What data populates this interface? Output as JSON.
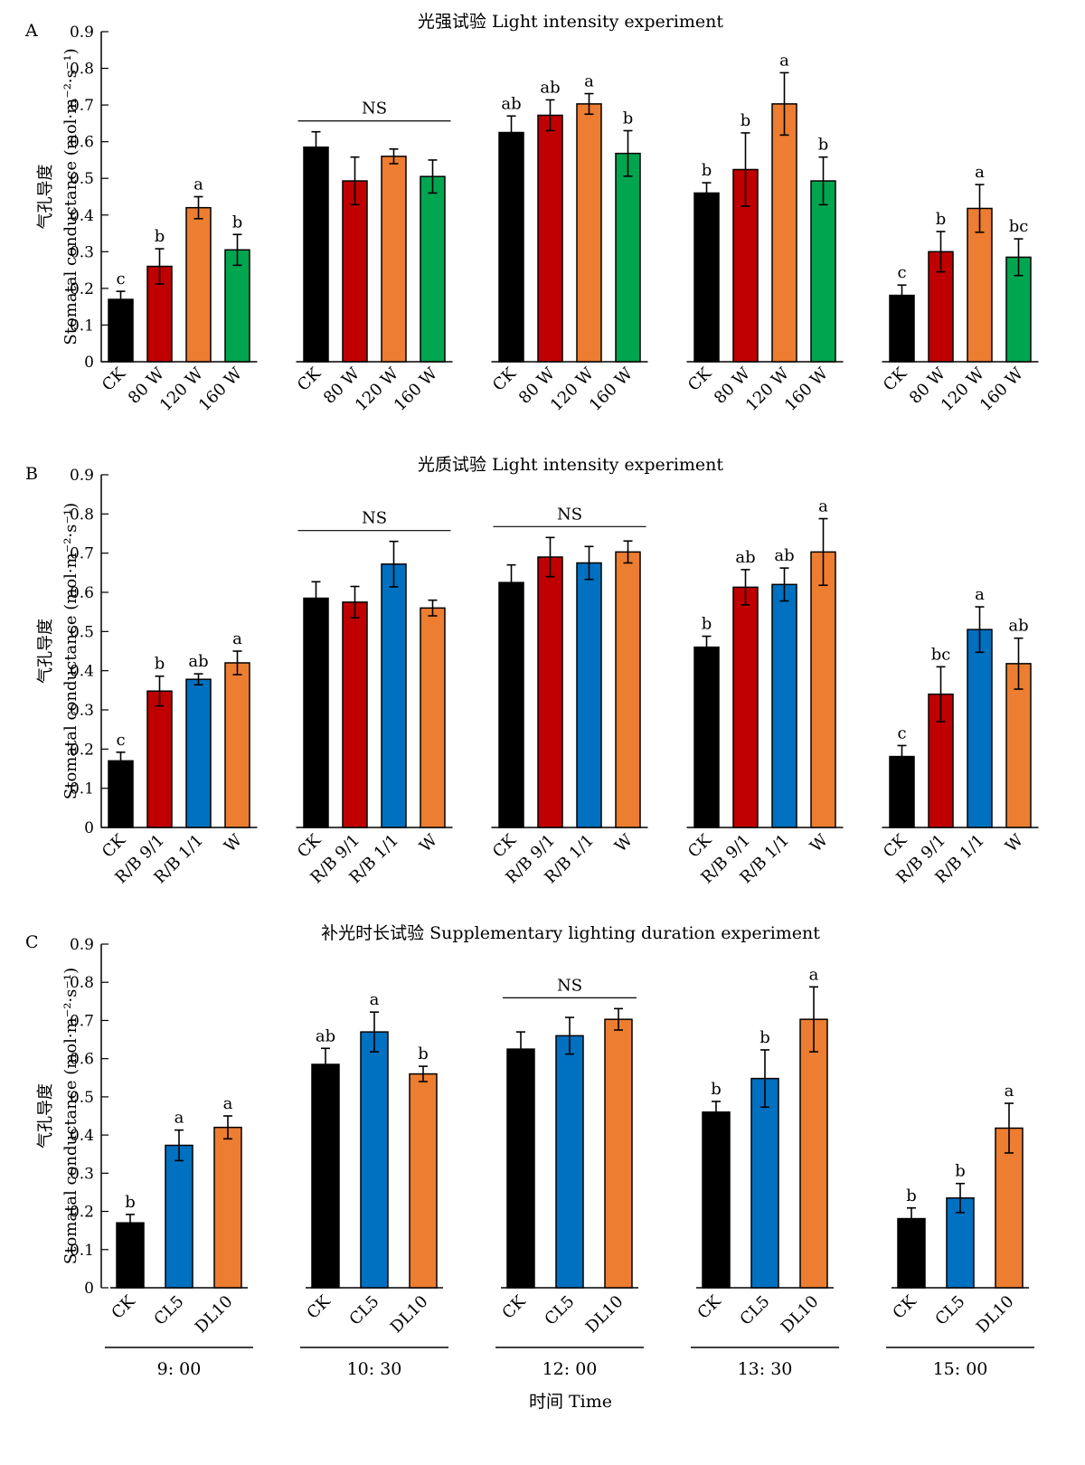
{
  "colors": {
    "CK": "#000000",
    "red": "#c00000",
    "orange": "#ed7d31",
    "green": "#00a550",
    "blue": "#0070c0"
  },
  "shared": {
    "ylabel_cn": "气孔导度",
    "ylabel_en": "Stomatal conductance (mol·m⁻²·s⁻¹)",
    "time_labels": [
      "9: 00",
      "10: 30",
      "12: 00",
      "13: 30",
      "15: 00"
    ],
    "xlabel": "时间 Time"
  },
  "chart_data": [
    {
      "type": "bar",
      "panel_label": "A",
      "title": "光强试验 Light intensity experiment",
      "ylim": [
        0,
        0.9
      ],
      "yticks": [
        "0",
        "0.1",
        "0.2",
        "0.3",
        "0.4",
        "0.5",
        "0.6",
        "0.7",
        "0.8",
        "0.9"
      ],
      "categories": [
        "CK",
        "80 W",
        "120 W",
        "160 W"
      ],
      "colors": [
        "#000000",
        "#c00000",
        "#ed7d31",
        "#00a550"
      ],
      "groups": [
        {
          "values": [
            0.17,
            0.26,
            0.42,
            0.305
          ],
          "errors": [
            0.022,
            0.048,
            0.03,
            0.042
          ],
          "letters": [
            "c",
            "b",
            "a",
            "b"
          ],
          "ns": false
        },
        {
          "values": [
            0.585,
            0.493,
            0.56,
            0.505
          ],
          "errors": [
            0.042,
            0.065,
            0.02,
            0.045
          ],
          "letters": [
            "",
            "",
            "",
            ""
          ],
          "ns": true,
          "ns_label": "NS"
        },
        {
          "values": [
            0.625,
            0.672,
            0.703,
            0.568
          ],
          "errors": [
            0.045,
            0.042,
            0.028,
            0.062
          ],
          "letters": [
            "ab",
            "ab",
            "a",
            "b"
          ],
          "ns": false
        },
        {
          "values": [
            0.46,
            0.524,
            0.703,
            0.493
          ],
          "errors": [
            0.028,
            0.1,
            0.085,
            0.065
          ],
          "letters": [
            "b",
            "b",
            "a",
            "b"
          ],
          "ns": false
        },
        {
          "values": [
            0.181,
            0.3,
            0.418,
            0.285
          ],
          "errors": [
            0.028,
            0.055,
            0.065,
            0.05
          ],
          "letters": [
            "c",
            "b",
            "a",
            "bc"
          ],
          "ns": false
        }
      ]
    },
    {
      "type": "bar",
      "panel_label": "B",
      "title": "光质试验 Light intensity experiment",
      "ylim": [
        0,
        0.9
      ],
      "yticks": [
        "0",
        "0.1",
        "0.2",
        "0.3",
        "0.4",
        "0.5",
        "0.6",
        "0.7",
        "0.8",
        "0.9"
      ],
      "categories": [
        "CK",
        "R/B 9/1",
        "R/B 1/1",
        "W"
      ],
      "colors": [
        "#000000",
        "#c00000",
        "#0070c0",
        "#ed7d31"
      ],
      "groups": [
        {
          "values": [
            0.17,
            0.348,
            0.378,
            0.42
          ],
          "errors": [
            0.022,
            0.038,
            0.014,
            0.03
          ],
          "letters": [
            "c",
            "b",
            "ab",
            "a"
          ],
          "ns": false
        },
        {
          "values": [
            0.585,
            0.575,
            0.672,
            0.56
          ],
          "errors": [
            0.042,
            0.04,
            0.058,
            0.02
          ],
          "letters": [
            "",
            "",
            "",
            ""
          ],
          "ns": true,
          "ns_label": "NS"
        },
        {
          "values": [
            0.625,
            0.69,
            0.675,
            0.703
          ],
          "errors": [
            0.045,
            0.05,
            0.042,
            0.028
          ],
          "letters": [
            "",
            "",
            "",
            ""
          ],
          "ns": true,
          "ns_label": "NS"
        },
        {
          "values": [
            0.46,
            0.613,
            0.62,
            0.703
          ],
          "errors": [
            0.028,
            0.045,
            0.042,
            0.085
          ],
          "letters": [
            "b",
            "ab",
            "ab",
            "a"
          ],
          "ns": false
        },
        {
          "values": [
            0.181,
            0.34,
            0.505,
            0.418
          ],
          "errors": [
            0.028,
            0.07,
            0.058,
            0.065
          ],
          "letters": [
            "c",
            "bc",
            "a",
            "ab"
          ],
          "ns": false
        }
      ]
    },
    {
      "type": "bar",
      "panel_label": "C",
      "title": "补光时长试验 Supplementary lighting duration experiment",
      "ylim": [
        0,
        0.9
      ],
      "yticks": [
        "0",
        "0.1",
        "0.2",
        "0.3",
        "0.4",
        "0.5",
        "0.6",
        "0.7",
        "0.8",
        "0.9"
      ],
      "categories": [
        "CK",
        "CL5",
        "DL10"
      ],
      "colors": [
        "#000000",
        "#0070c0",
        "#ed7d31"
      ],
      "groups": [
        {
          "values": [
            0.17,
            0.373,
            0.42
          ],
          "errors": [
            0.022,
            0.04,
            0.03
          ],
          "letters": [
            "b",
            "a",
            "a"
          ],
          "ns": false
        },
        {
          "values": [
            0.585,
            0.67,
            0.56
          ],
          "errors": [
            0.042,
            0.052,
            0.02
          ],
          "letters": [
            "ab",
            "a",
            "b"
          ],
          "ns": false
        },
        {
          "values": [
            0.625,
            0.66,
            0.703
          ],
          "errors": [
            0.045,
            0.048,
            0.028
          ],
          "letters": [
            "",
            "",
            ""
          ],
          "ns": true,
          "ns_label": "NS"
        },
        {
          "values": [
            0.46,
            0.548,
            0.703
          ],
          "errors": [
            0.028,
            0.075,
            0.085
          ],
          "letters": [
            "b",
            "b",
            "a"
          ],
          "ns": false
        },
        {
          "values": [
            0.181,
            0.235,
            0.418
          ],
          "errors": [
            0.028,
            0.038,
            0.065
          ],
          "letters": [
            "b",
            "b",
            "a"
          ],
          "ns": false
        }
      ]
    }
  ]
}
